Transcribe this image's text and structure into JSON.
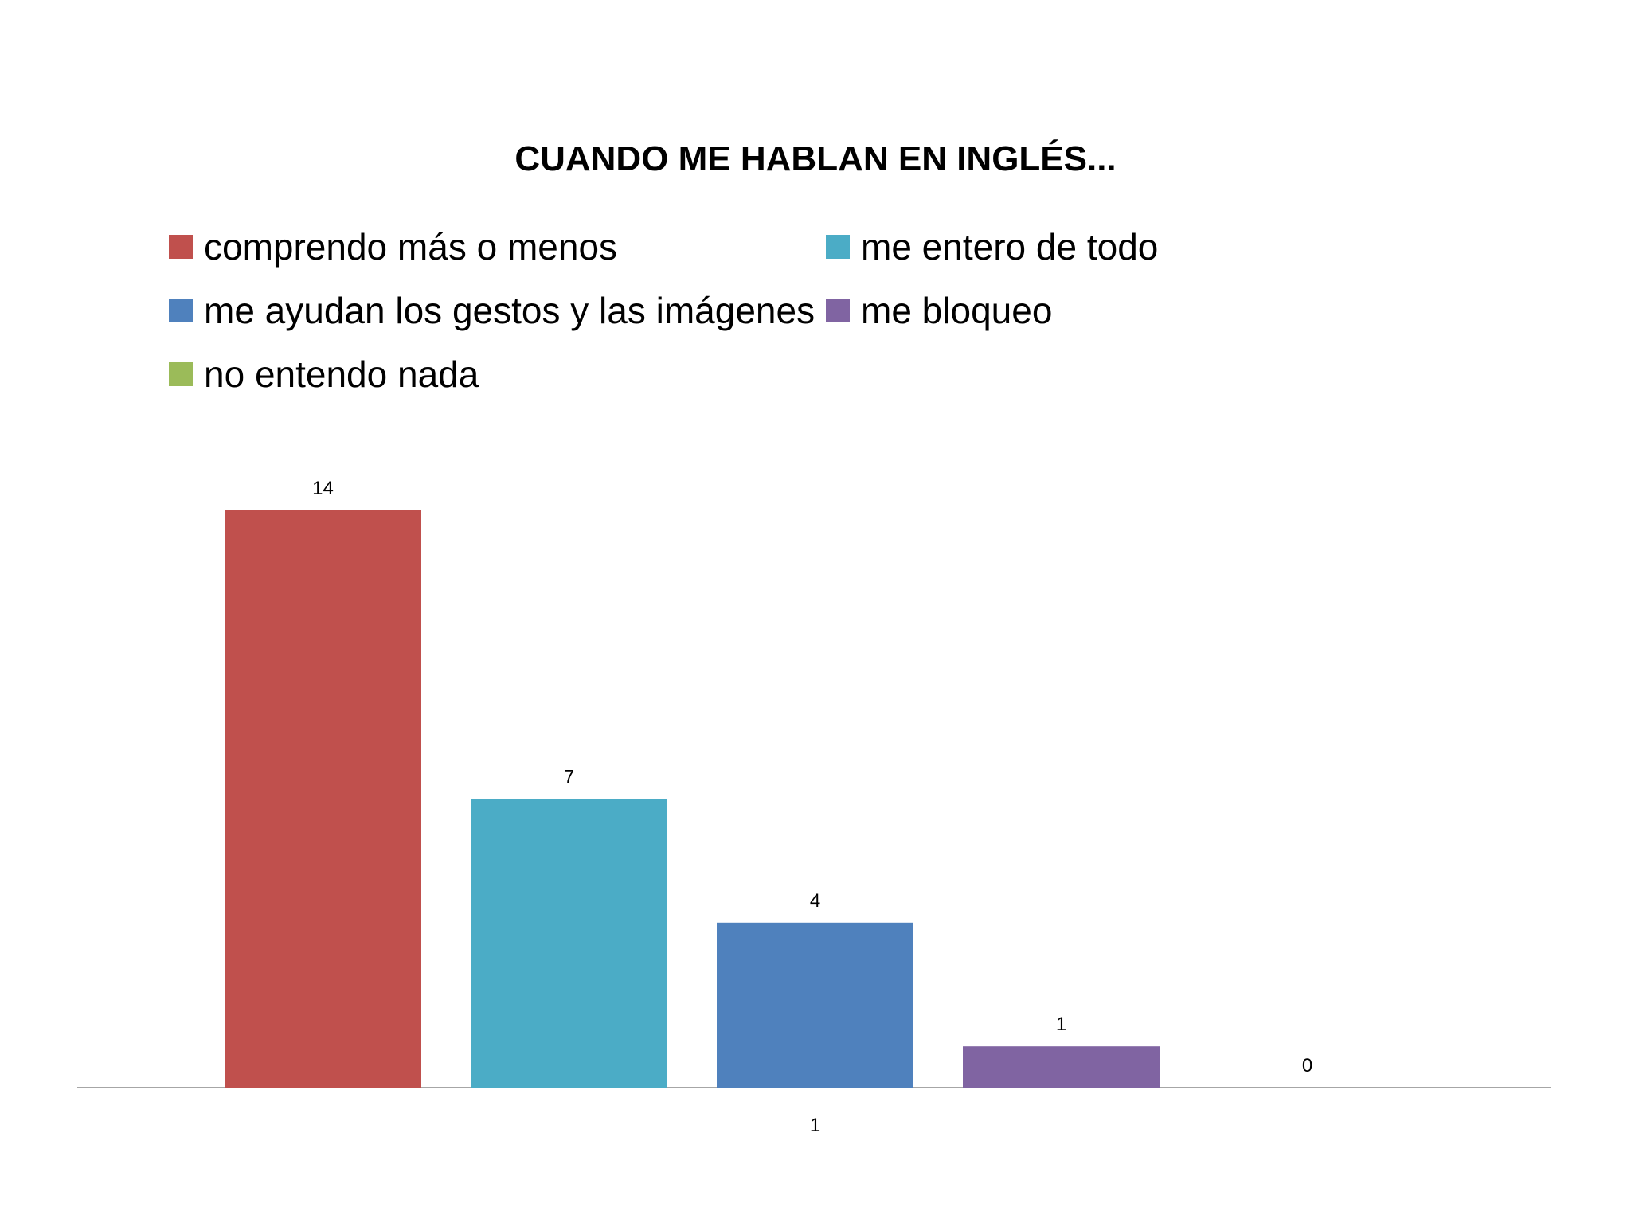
{
  "chart_data": {
    "type": "bar",
    "title": "CUANDO ME HABLAN EN INGLÉS...",
    "xlabel": "",
    "ylabel": "",
    "categories": [
      "1"
    ],
    "series": [
      {
        "name": "comprendo más o menos",
        "values": [
          14
        ],
        "color": "#c0504d"
      },
      {
        "name": "me entero de todo",
        "values": [
          7
        ],
        "color": "#4bacc6"
      },
      {
        "name": "me ayudan los gestos y las imágenes",
        "values": [
          4
        ],
        "color": "#4f81bd"
      },
      {
        "name": "me bloqueo",
        "values": [
          1
        ],
        "color": "#8064a2"
      },
      {
        "name": "no entendo nada",
        "values": [
          0
        ],
        "color": "#9bbb59"
      }
    ],
    "ylim": [
      0,
      15
    ],
    "grid": false,
    "legend_position": "top",
    "data_labels": [
      "14",
      "7",
      "4",
      "1",
      "0"
    ],
    "axis_color": "#a6a6a6"
  }
}
